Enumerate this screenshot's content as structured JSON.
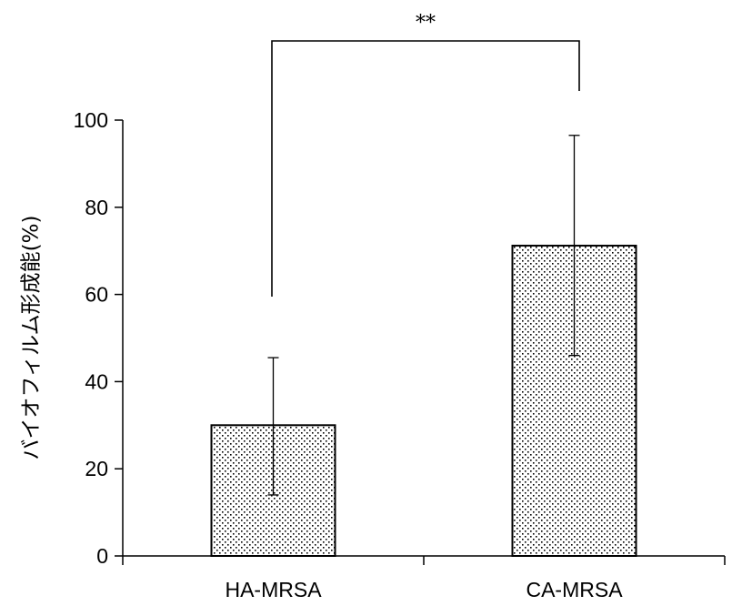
{
  "chart_data": {
    "type": "bar",
    "categories": [
      "HA-MRSA",
      "CA-MRSA"
    ],
    "values": [
      30,
      71.2
    ],
    "error_bars": [
      {
        "low": 14,
        "high": 45.5
      },
      {
        "low": 46,
        "high": 96.5
      }
    ],
    "ylabel": "バイオフィルム形成能(%)",
    "ylim": [
      0,
      100
    ],
    "yticks": [
      "0",
      "20",
      "40",
      "60",
      "80",
      "100"
    ],
    "significance": {
      "label": "**",
      "between": [
        "HA-MRSA",
        "CA-MRSA"
      ]
    },
    "bar_fill": "dotted",
    "colors": {
      "bar_edge": "#000000",
      "dot": "#000000",
      "background": "#ffffff"
    },
    "grid": false,
    "legend": "none"
  }
}
